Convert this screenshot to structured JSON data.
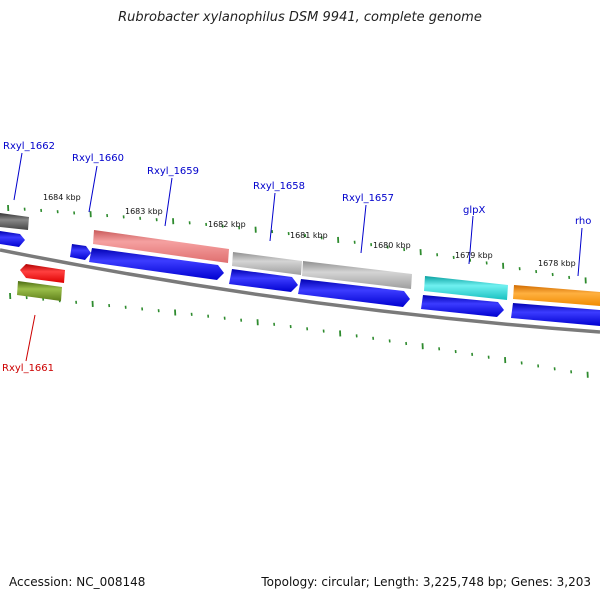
{
  "title": "Rubrobacter xylanophilus DSM 9941, complete genome",
  "footer": {
    "accession": "Accession: NC_008148",
    "topology": "Topology: circular; Length: 3,225,748 bp; Genes: 3,203"
  },
  "scale_labels": [
    "1684 kbp",
    "1683 kbp",
    "1682 kbp",
    "1681 kbp",
    "1680 kbp",
    "1679 kbp",
    "1678 kbp"
  ],
  "genes": [
    {
      "name": "Rxyl_1662",
      "color": "#0000cc"
    },
    {
      "name": "Rxyl_1660",
      "color": "#0000cc"
    },
    {
      "name": "Rxyl_1659",
      "color": "#0000cc"
    },
    {
      "name": "Rxyl_1658",
      "color": "#0000cc"
    },
    {
      "name": "Rxyl_1657",
      "color": "#0000cc"
    },
    {
      "name": "glpX",
      "color": "#0000cc"
    },
    {
      "name": "rho",
      "color": "#0000cc"
    },
    {
      "name": "Rxyl_1661",
      "color": "#cc0000"
    }
  ],
  "colors": {
    "cds": "#0000ee",
    "backbone": "#808080",
    "tick": "#2e8b2e",
    "feature_gray_dark": "#555555",
    "feature_pink": "#e97d7d",
    "feature_gray_light": "#b0b0b0",
    "feature_cyan": "#22cccc",
    "feature_orange": "#ff8c00",
    "feature_red": "#ee0000",
    "feature_olive": "#6b8e23"
  }
}
